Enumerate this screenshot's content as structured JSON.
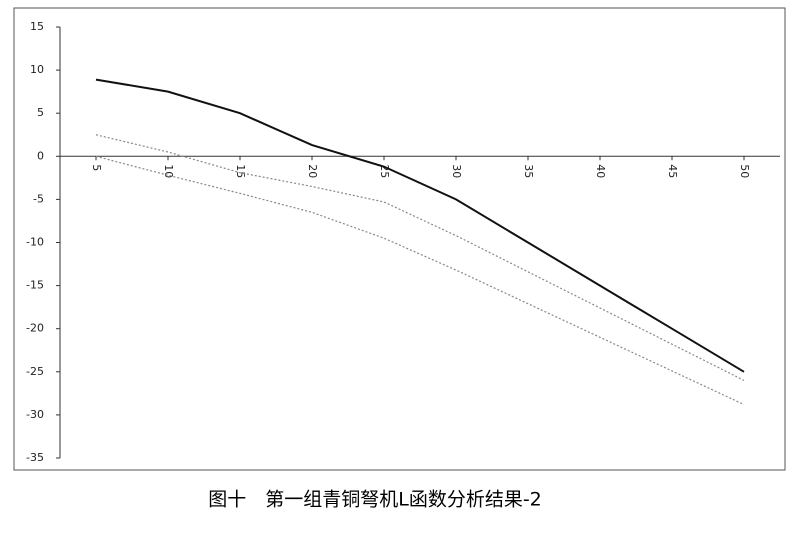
{
  "chart_data": {
    "type": "line",
    "caption": "图十　第一组青铜弩机L函数分析结果-2",
    "x": [
      5,
      10,
      15,
      20,
      25,
      30,
      35,
      40,
      45,
      50
    ],
    "series": [
      {
        "color": "#111111",
        "style": "solid",
        "values": [
          8.9,
          7.5,
          5,
          1.3,
          -1.2,
          -5,
          -10,
          -15,
          -20,
          -25
        ]
      },
      {
        "color": "#888888",
        "style": "dotted",
        "values": [
          2.5,
          0.5,
          -1.9,
          -3.5,
          -5.3,
          -9.2,
          -13.4,
          -17.6,
          -21.8,
          -26
        ]
      },
      {
        "color": "#888888",
        "style": "dotted",
        "values": [
          0,
          -2.2,
          -4.3,
          -6.5,
          -9.5,
          -13.2,
          -17.1,
          -21,
          -24.9,
          -28.8
        ]
      }
    ],
    "xlim": [
      2.5,
      52.5
    ],
    "xticks": [
      5,
      10,
      15,
      20,
      25,
      30,
      35,
      40,
      45,
      50
    ],
    "ylim": [
      -35,
      15
    ],
    "yticks": [
      -35,
      -30,
      -25,
      -20,
      -15,
      -10,
      -5,
      0,
      5,
      10,
      15
    ]
  }
}
